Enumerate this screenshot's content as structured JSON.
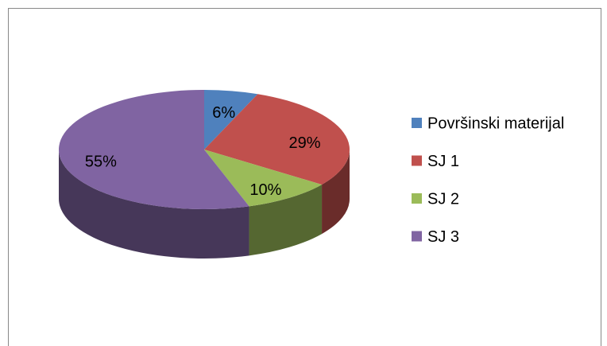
{
  "chart_data": {
    "type": "pie",
    "categories": [
      "Površinski materijal",
      "SJ 1",
      "SJ 2",
      "SJ 3"
    ],
    "values": [
      6,
      29,
      10,
      55
    ],
    "value_labels": [
      "6%",
      "29%",
      "10%",
      "55%"
    ],
    "colors": [
      "#4f81bd",
      "#c0504d",
      "#9bbb59",
      "#8064a2"
    ],
    "legend": "right"
  }
}
